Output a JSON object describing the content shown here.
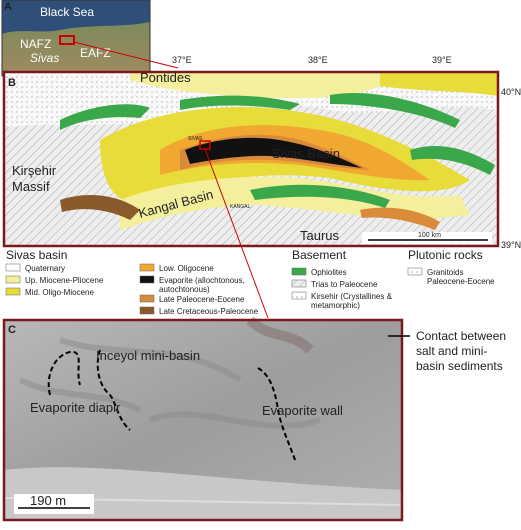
{
  "panel_a": {
    "label": "A",
    "sea": "Black Sea",
    "faults": [
      "NAFZ",
      "EAFZ"
    ],
    "city": "Sivas"
  },
  "panel_b": {
    "label": "B",
    "longitudes": [
      "37°E",
      "38°E",
      "39°E"
    ],
    "latitudes": [
      "40°N",
      "39°N"
    ],
    "places": {
      "pontides": "Pontides",
      "kirsehir": [
        "Kirşehir",
        "Massif"
      ],
      "sivas_basin": "Sivas Basin",
      "kangal_basin": "Kangal Basin",
      "taurus": "Taurus",
      "sivas_town": "SIVAS",
      "kangal_town": "KANGAL"
    },
    "scale": "100 km"
  },
  "legend": {
    "sivas_basin": {
      "title": "Sivas basin",
      "items": [
        [
          "Quaternary"
        ],
        [
          "Up. Miocene-Pliocene"
        ],
        [
          "Mid. Oligo-Miocene"
        ],
        [
          "Low. Oligocene"
        ],
        [
          "Evaporite (allochtonous,",
          "autochtonous)"
        ],
        [
          "Late Paleocene-Eocene"
        ],
        [
          "Late Cretaceous-Paleocene"
        ]
      ]
    },
    "basement": {
      "title": "Basement",
      "items": [
        [
          "Ophiolites"
        ],
        [
          "Trias to Paleocene"
        ],
        [
          "Kirsehir (Crystallines &",
          "metamorphic)"
        ]
      ]
    },
    "plutonic": {
      "title": "Plutonic rocks",
      "items": [
        [
          "Granitoids",
          "Paleocene-Eocene"
        ]
      ]
    }
  },
  "panel_c": {
    "label": "C",
    "labels": [
      "Inceyol mini-basin",
      "Evaporite diapir",
      "Evaporite wall"
    ],
    "scale": "190 m",
    "contact": [
      "Contact between",
      "salt and mini-",
      "basin sediments"
    ]
  }
}
